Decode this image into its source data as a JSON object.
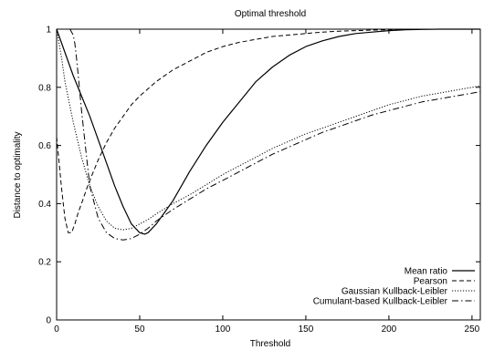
{
  "chart_data": {
    "type": "line",
    "title": "Optimal threshold",
    "xlabel": "Threshold",
    "ylabel": "Distance to optimality",
    "xlim": [
      0,
      255
    ],
    "ylim": [
      0,
      1
    ],
    "xticks": [
      0,
      50,
      100,
      150,
      200,
      250
    ],
    "yticks": [
      0,
      0.2,
      0.4,
      0.6,
      0.8,
      1
    ],
    "ytick_labels": [
      "0",
      "0.2",
      "0.4",
      "0.6",
      "0.8",
      "1"
    ],
    "grid": false,
    "legend_position": "bottom-right",
    "series": [
      {
        "name": "Mean ratio",
        "style": "solid",
        "x": [
          0,
          5,
          10,
          15,
          20,
          25,
          30,
          35,
          40,
          45,
          50,
          53,
          55,
          60,
          65,
          70,
          75,
          80,
          90,
          100,
          110,
          120,
          130,
          140,
          150,
          160,
          170,
          180,
          190,
          200,
          210,
          220,
          230,
          240,
          250,
          255
        ],
        "y": [
          1.0,
          0.92,
          0.84,
          0.77,
          0.7,
          0.62,
          0.54,
          0.46,
          0.39,
          0.33,
          0.3,
          0.295,
          0.3,
          0.33,
          0.37,
          0.41,
          0.46,
          0.51,
          0.6,
          0.68,
          0.75,
          0.82,
          0.87,
          0.91,
          0.94,
          0.96,
          0.975,
          0.985,
          0.99,
          0.995,
          0.998,
          0.999,
          1.0,
          1.0,
          1.0,
          1.0
        ]
      },
      {
        "name": "Pearson",
        "style": "dashed",
        "x": [
          0,
          3,
          5,
          7,
          9,
          11,
          13,
          15,
          18,
          20,
          25,
          30,
          35,
          40,
          45,
          50,
          60,
          70,
          80,
          90,
          100,
          110,
          120,
          130,
          140,
          150,
          160,
          170,
          180,
          190,
          200,
          210,
          220,
          230,
          240,
          250,
          255
        ],
        "y": [
          0.63,
          0.45,
          0.35,
          0.3,
          0.3,
          0.33,
          0.37,
          0.4,
          0.45,
          0.48,
          0.55,
          0.61,
          0.66,
          0.7,
          0.74,
          0.77,
          0.82,
          0.86,
          0.89,
          0.92,
          0.94,
          0.955,
          0.965,
          0.975,
          0.98,
          0.985,
          0.99,
          0.993,
          0.995,
          0.997,
          0.998,
          0.999,
          1.0,
          1.0,
          1.0,
          1.0,
          1.0
        ]
      },
      {
        "name": "Gaussian Kullback-Leibler",
        "style": "dotted",
        "x": [
          0,
          3,
          5,
          10,
          15,
          20,
          25,
          30,
          35,
          40,
          45,
          50,
          55,
          60,
          70,
          80,
          90,
          100,
          110,
          120,
          130,
          140,
          150,
          160,
          170,
          180,
          190,
          200,
          210,
          220,
          230,
          240,
          250,
          255
        ],
        "y": [
          1.0,
          0.9,
          0.82,
          0.68,
          0.56,
          0.46,
          0.39,
          0.34,
          0.315,
          0.31,
          0.315,
          0.33,
          0.345,
          0.365,
          0.4,
          0.43,
          0.465,
          0.5,
          0.53,
          0.56,
          0.59,
          0.615,
          0.64,
          0.66,
          0.68,
          0.7,
          0.72,
          0.74,
          0.755,
          0.77,
          0.78,
          0.79,
          0.8,
          0.805
        ]
      },
      {
        "name": "Cumulant-based Kullback-Leibler",
        "style": "dash-dot",
        "x": [
          0,
          5,
          8,
          10,
          11,
          12,
          13,
          15,
          18,
          20,
          25,
          30,
          35,
          40,
          45,
          50,
          55,
          60,
          70,
          80,
          90,
          100,
          110,
          120,
          130,
          140,
          150,
          160,
          170,
          180,
          190,
          200,
          210,
          220,
          230,
          240,
          250,
          255
        ],
        "y": [
          1.0,
          1.0,
          1.0,
          0.98,
          0.95,
          0.9,
          0.84,
          0.72,
          0.56,
          0.46,
          0.35,
          0.3,
          0.28,
          0.275,
          0.28,
          0.295,
          0.315,
          0.34,
          0.38,
          0.415,
          0.45,
          0.48,
          0.51,
          0.54,
          0.57,
          0.595,
          0.62,
          0.645,
          0.665,
          0.685,
          0.705,
          0.72,
          0.735,
          0.75,
          0.76,
          0.77,
          0.78,
          0.785
        ]
      }
    ]
  }
}
